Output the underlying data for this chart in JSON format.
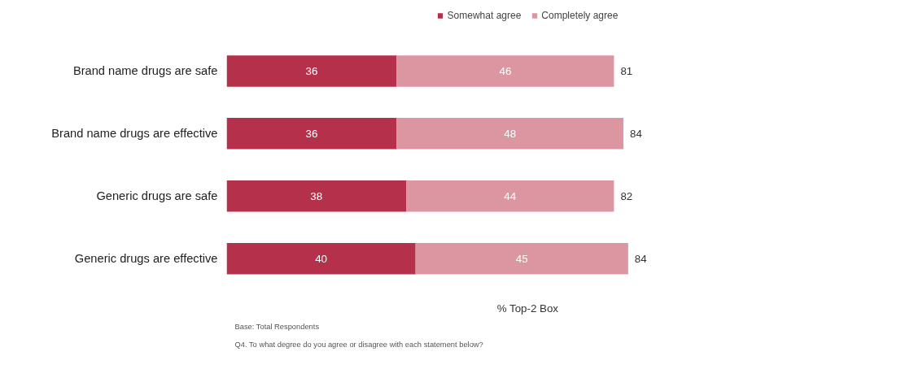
{
  "chart_data": {
    "type": "bar",
    "orientation": "horizontal",
    "stacked": true,
    "data_labels": true,
    "legend": "top",
    "grid": false,
    "tick_labels": "y",
    "xlabel": "% Top-2 Box",
    "categories": [
      "Brand name drugs are safe",
      "Brand name drugs are effective",
      "Generic drugs are safe",
      "Generic drugs are effective"
    ],
    "series": [
      {
        "name": "Somewhat agree",
        "color": "#b5304a",
        "values": [
          36,
          36,
          38,
          40
        ]
      },
      {
        "name": "Completely agree",
        "color": "#dc96a2",
        "values": [
          46,
          48,
          44,
          45
        ]
      }
    ],
    "totals": [
      "81",
      "84",
      "82",
      "84"
    ],
    "annotations": [
      "Base: Total Respondents",
      "Q4. To what degree do you agree or disagree with each statement below?"
    ]
  }
}
